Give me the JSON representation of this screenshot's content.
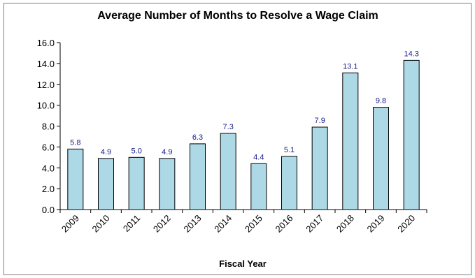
{
  "chart_data": {
    "type": "bar",
    "title": "Average Number of Months to Resolve a Wage Claim",
    "xlabel": "Fiscal Year",
    "ylabel": "",
    "categories": [
      "2009",
      "2010",
      "2011",
      "2012",
      "2013",
      "2014",
      "2015",
      "2016",
      "2017",
      "2018",
      "2019",
      "2020"
    ],
    "values": [
      5.8,
      4.9,
      5.0,
      4.9,
      6.3,
      7.3,
      4.4,
      5.1,
      7.9,
      13.1,
      9.8,
      14.3
    ],
    "value_labels": [
      "5.8",
      "4.9",
      "5.0",
      "4.9",
      "6.3",
      "7.3",
      "4.4",
      "5.1",
      "7.9",
      "13.1",
      "9.8",
      "14.3"
    ],
    "ylim": [
      0,
      16
    ],
    "yticks": [
      "0.0",
      "2.0",
      "4.0",
      "6.0",
      "8.0",
      "10.0",
      "12.0",
      "14.0",
      "16.0"
    ],
    "grid": false,
    "legend": "none",
    "colors": {
      "bar_fill": "#add8e6",
      "bar_stroke": "#000000",
      "value_label": "#1a1a8c"
    }
  }
}
